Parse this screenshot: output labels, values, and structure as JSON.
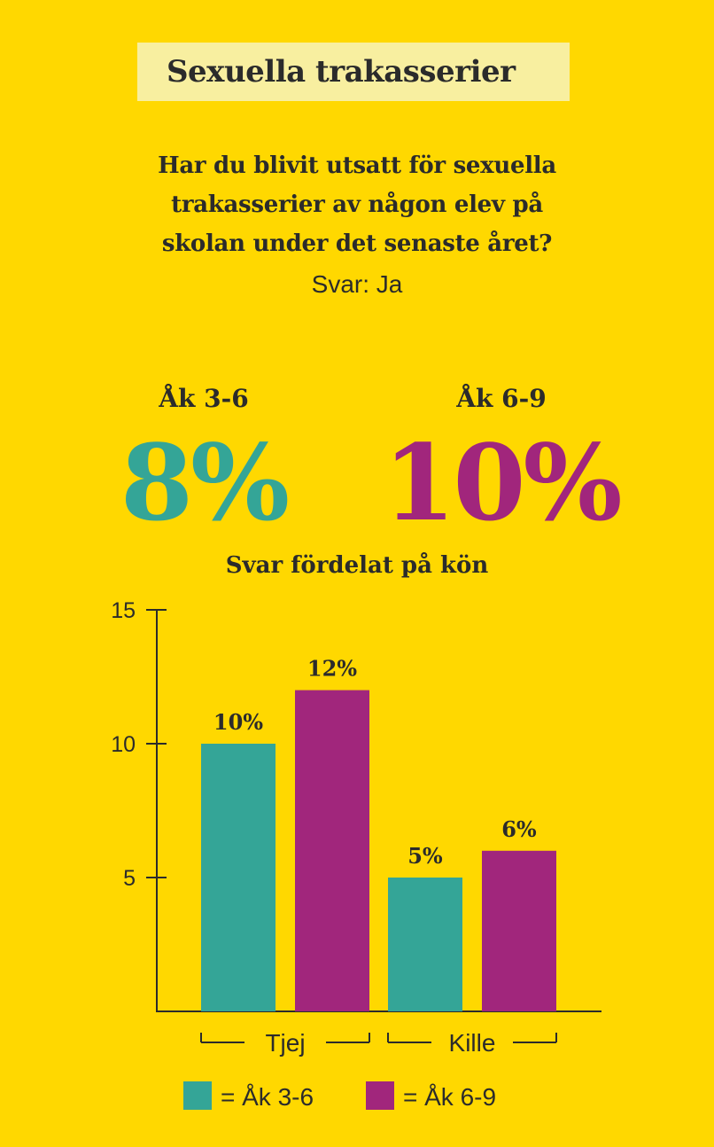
{
  "header": {
    "title": "Sexuella trakasserier",
    "question_lines": [
      "Har du blivit utsatt för sexuella",
      "trakasserier av någon elev på",
      "skolan under det senaste året?"
    ],
    "answer": "Svar: Ja"
  },
  "summary": [
    {
      "label": "Åk 3-6",
      "value": "8%",
      "color": "#34A597"
    },
    {
      "label": "Åk 6-9",
      "value": "10%",
      "color": "#A1267C"
    }
  ],
  "chart_subtitle": "Svar fördelat på kön",
  "chart_data": {
    "type": "bar",
    "categories": [
      "Tjej",
      "Kille"
    ],
    "series": [
      {
        "name": "Åk 3-6",
        "color": "#34A597",
        "values": [
          10,
          5
        ],
        "labels": [
          "10%",
          "5%"
        ]
      },
      {
        "name": "Åk 6-9",
        "color": "#A1267C",
        "values": [
          12,
          6
        ],
        "labels": [
          "12%",
          "6%"
        ]
      }
    ],
    "yticks": [
      5,
      10,
      15
    ],
    "ylim": [
      0,
      15
    ]
  },
  "legend": [
    {
      "text": "= Åk 3-6",
      "color": "#34A597"
    },
    {
      "text": "= Åk 6-9",
      "color": "#A1267C"
    }
  ]
}
